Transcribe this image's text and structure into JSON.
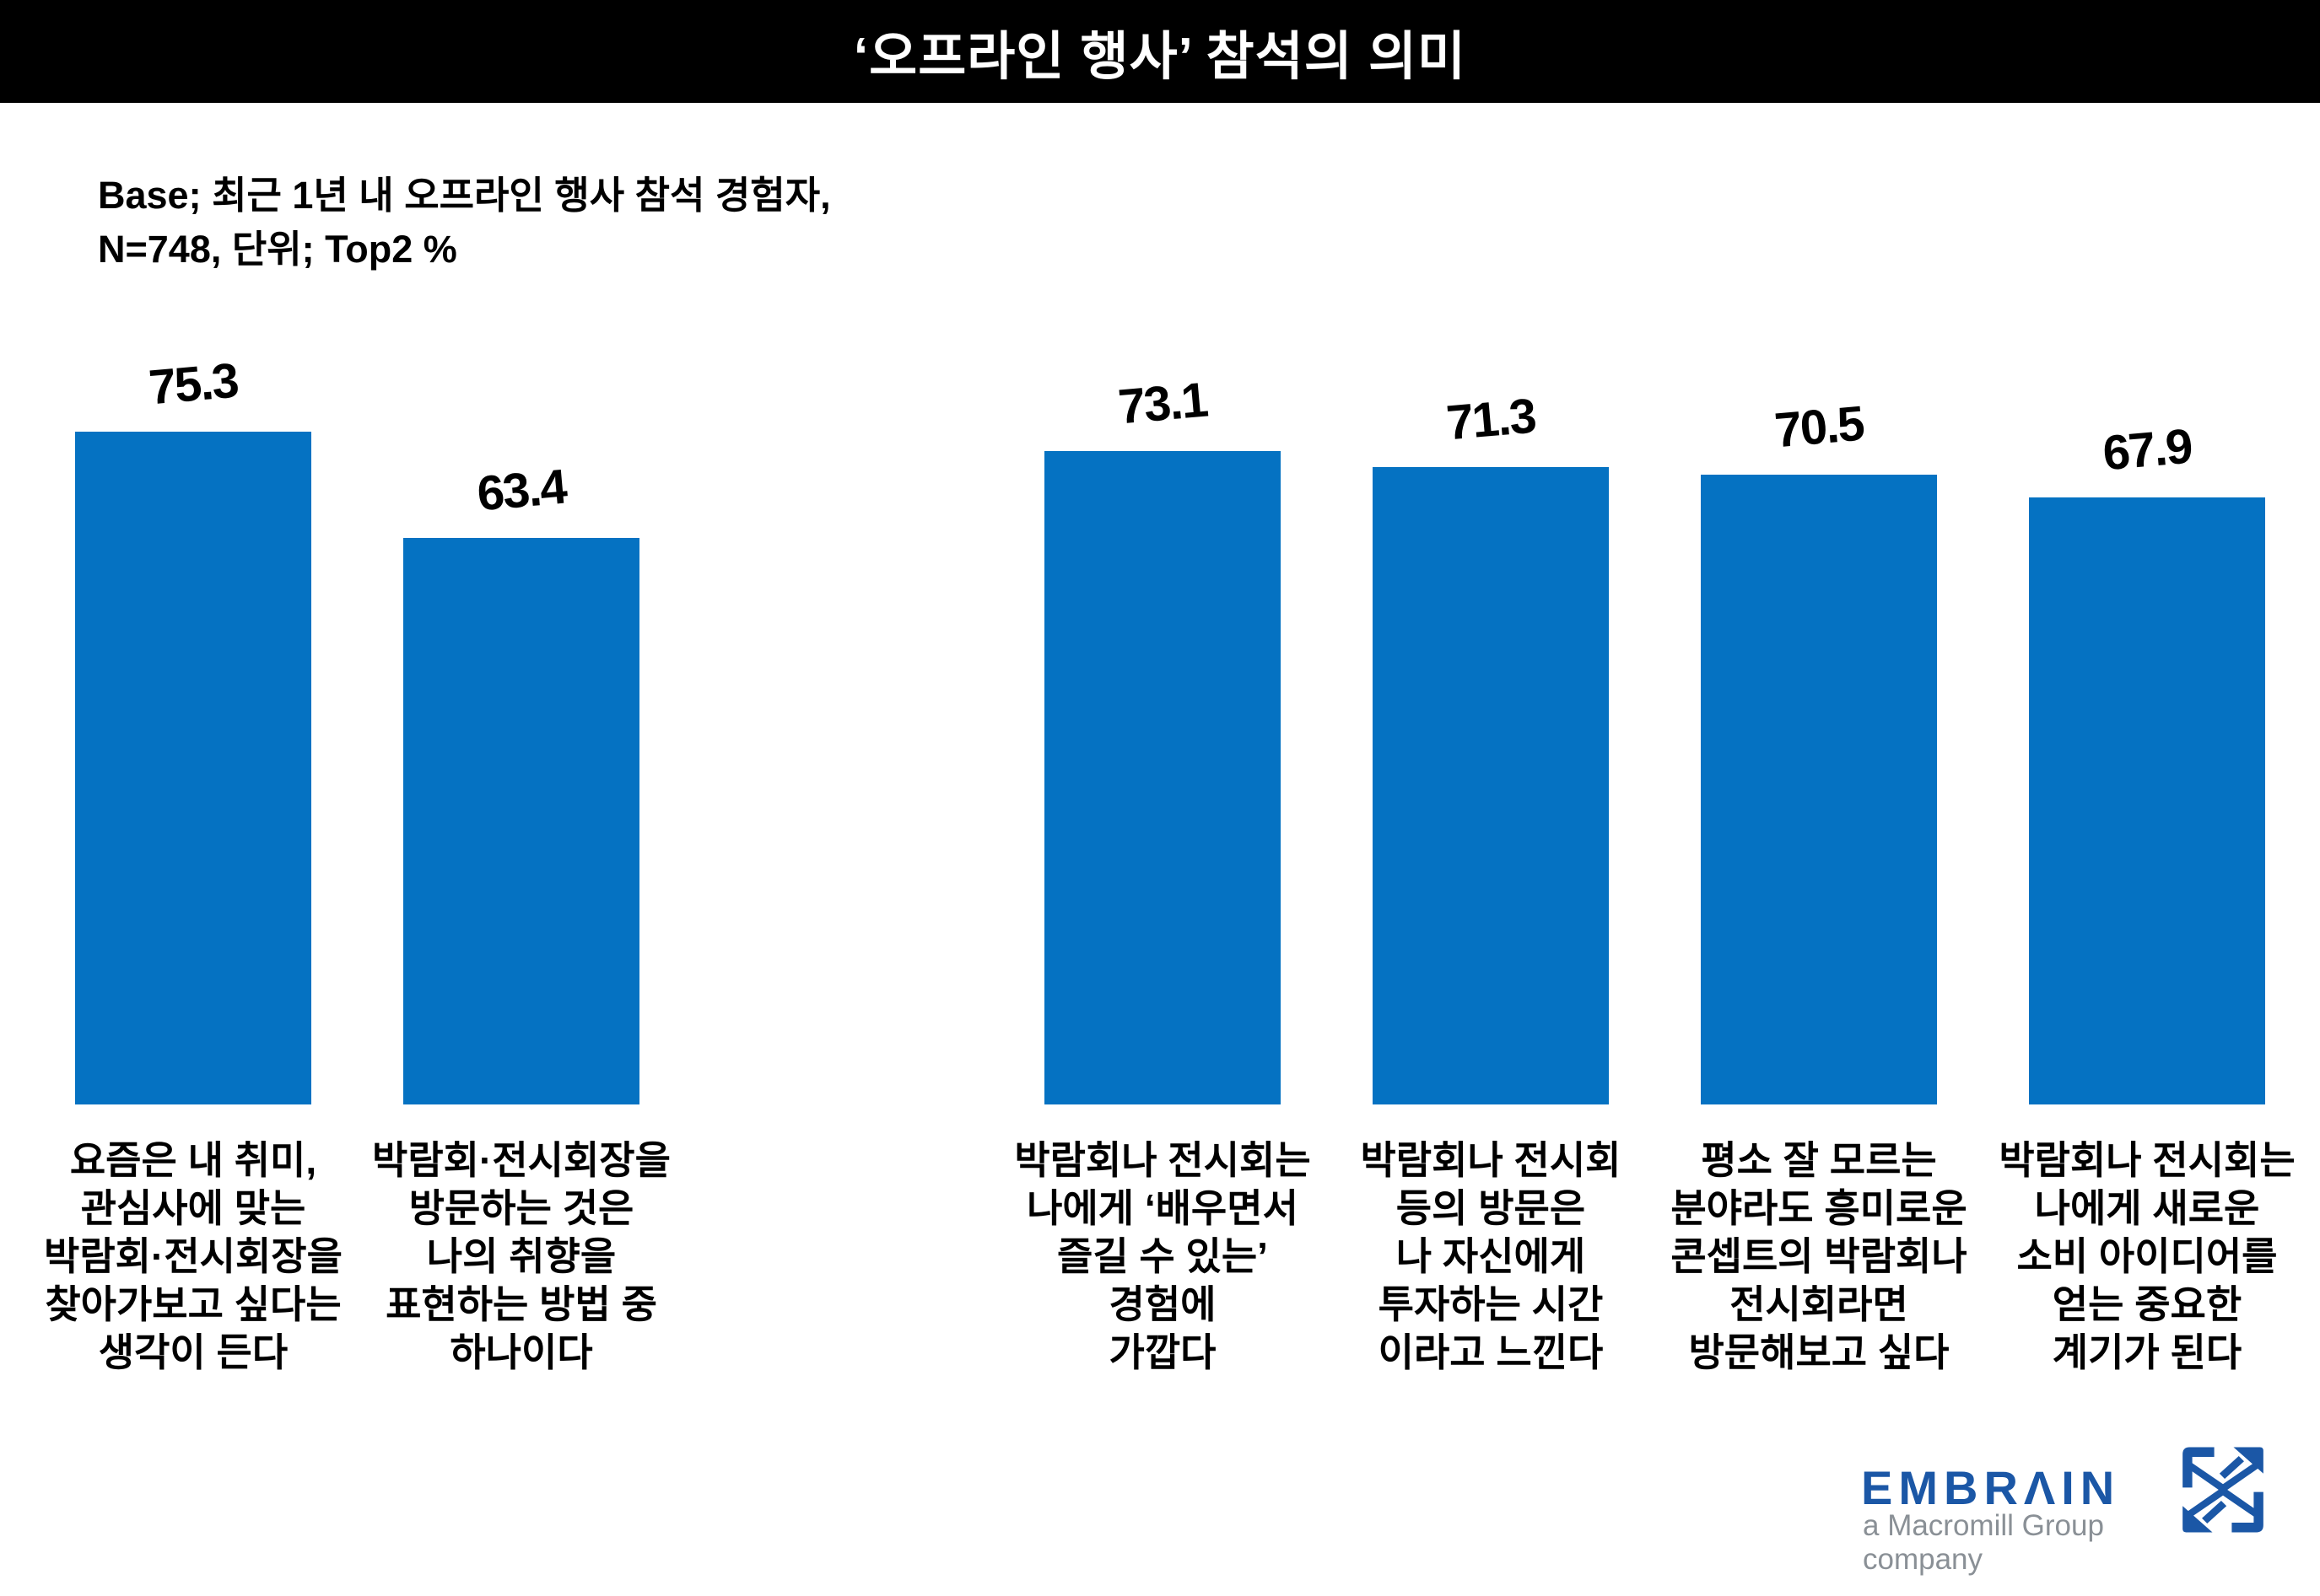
{
  "title": "‘오프라인 행사’ 참석의 의미",
  "base_note": {
    "line1": "Base; 최근 1년 내 오프라인 행사 참석 경험자,",
    "line2": "N=748, 단위; Top2 %"
  },
  "chart_data": {
    "type": "bar",
    "title": "‘오프라인 행사’ 참석의 의미",
    "base": "최근 1년 내 오프라인 행사 참석 경험자, N=748",
    "unit": "Top2 %",
    "ylim": [
      0,
      80
    ],
    "grid": false,
    "legend": false,
    "bar_color": "#0572C2",
    "categories": [
      "요즘은 내 취미,\n관심사에 맞는\n박람회·전시회장을\n찾아가보고 싶다는\n생각이 든다",
      "박람회·전시회장을\n방문하는 것은\n나의 취향을\n표현하는 방법 중\n하나이다",
      "박람회나 전시회는\n나에게 ‘배우면서\n즐길 수 있는’\n경험에\n가깝다",
      "박람회나 전시회\n등의 방문은\n나 자신에게\n투자하는 시간\n이라고 느낀다",
      "평소 잘 모르는\n분야라도 흥미로운\n콘셉트의 박람회나\n전시회라면\n방문해보고 싶다",
      "박람회나 전시회는\n나에게 새로운\n소비 아이디어를\n얻는 중요한\n계기가 된다"
    ],
    "values": [
      75.3,
      63.4,
      73.1,
      71.3,
      70.5,
      67.9
    ],
    "groups": [
      {
        "bars": [
          {
            "label": "요즘은 내 취미,\n관심사에 맞는\n박람회·전시회장을\n찾아가보고 싶다는\n생각이 든다",
            "value": 75.3
          },
          {
            "label": "박람회·전시회장을\n방문하는 것은\n나의 취향을\n표현하는 방법 중\n하나이다",
            "value": 63.4
          }
        ]
      },
      {
        "bars": [
          {
            "label": "박람회나 전시회는\n나에게 ‘배우면서\n즐길 수 있는’\n경험에\n가깝다",
            "value": 73.1
          },
          {
            "label": "박람회나 전시회\n등의 방문은\n나 자신에게\n투자하는 시간\n이라고 느낀다",
            "value": 71.3
          },
          {
            "label": "평소 잘 모르는\n분야라도 흥미로운\n콘셉트의 박람회나\n전시회라면\n방문해보고 싶다",
            "value": 70.5
          },
          {
            "label": "박람회나 전시회는\n나에게 새로운\n소비 아이디어를\n얻는 중요한\n계기가 된다",
            "value": 67.9
          }
        ]
      }
    ]
  },
  "footer": {
    "brand": "EMBRAIN",
    "brand_display": "EMBRΛIN",
    "tagline": "a Macromill Group company"
  },
  "colors": {
    "bar": "#0572C2",
    "banner_bg": "#000000",
    "banner_text": "#FFFFFF",
    "logo_blue": "#1B57A6",
    "tagline_gray": "#8A9096"
  }
}
